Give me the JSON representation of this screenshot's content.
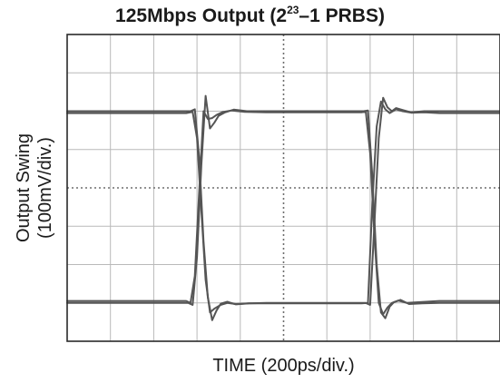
{
  "chart_data": {
    "type": "line",
    "title": {
      "prefix": "125Mbps Output (2",
      "exponent": "23",
      "suffix": "–1 PRBS)"
    },
    "xlabel": "TIME (200ps/div.)",
    "ylabel_lines": [
      "Output Swing",
      "(100mV/div.)"
    ],
    "xlim": [
      0,
      10
    ],
    "ylim": [
      0,
      8
    ],
    "grid": true,
    "x_divisions": 10,
    "y_divisions": 8,
    "series": [
      {
        "x": [
          0,
          2.85,
          2.95,
          3.05,
          3.15,
          3.25,
          3.35,
          3.45,
          3.55,
          3.7,
          3.9,
          4.2,
          4.6,
          5.0,
          6.9,
          7.0,
          7.1,
          7.2,
          7.3,
          7.4,
          7.5,
          7.6,
          7.75,
          7.95,
          8.25,
          8.6,
          10
        ],
        "y": [
          6.0,
          6.0,
          6.05,
          4.8,
          2.6,
          1.15,
          0.55,
          0.8,
          0.98,
          1.03,
          0.96,
          0.99,
          1.0,
          1.0,
          1.0,
          0.95,
          3.1,
          5.3,
          6.35,
          6.1,
          6.0,
          6.08,
          6.03,
          5.97,
          6.0,
          6.0,
          6.0
        ]
      },
      {
        "x": [
          0,
          2.8,
          2.9,
          3.0,
          3.1,
          3.2,
          3.3,
          3.4,
          3.5,
          3.65,
          3.85,
          4.15,
          4.6,
          5.0,
          6.85,
          6.95,
          7.05,
          7.15,
          7.25,
          7.35,
          7.45,
          7.55,
          7.7,
          7.9,
          8.2,
          8.6,
          10
        ],
        "y": [
          1.0,
          1.0,
          0.95,
          2.2,
          4.6,
          6.4,
          5.55,
          5.7,
          5.88,
          5.97,
          6.04,
          6.0,
          6.0,
          6.0,
          6.0,
          6.02,
          4.3,
          2.0,
          0.75,
          0.6,
          0.9,
          1.02,
          1.08,
          0.97,
          0.99,
          1.0,
          1.0
        ]
      },
      {
        "x": [
          0,
          2.75,
          2.9,
          3.0,
          3.1,
          3.2,
          3.3,
          3.4,
          3.55,
          3.7,
          3.9,
          4.2,
          4.6,
          5.0,
          6.8,
          6.95,
          7.05,
          7.15,
          7.25,
          7.35,
          7.45,
          7.6,
          7.75,
          7.95,
          8.25,
          8.6,
          10
        ],
        "y": [
          5.95,
          5.95,
          5.98,
          5.3,
          3.4,
          1.6,
          0.75,
          0.85,
          0.95,
          1.0,
          0.97,
          0.99,
          0.99,
          0.99,
          0.99,
          1.0,
          3.6,
          5.6,
          6.25,
          6.05,
          5.95,
          6.05,
          6.0,
          5.96,
          5.97,
          5.95,
          5.95
        ]
      },
      {
        "x": [
          0,
          2.75,
          2.85,
          2.95,
          3.05,
          3.15,
          3.25,
          3.35,
          3.45,
          3.6,
          3.8,
          4.1,
          4.6,
          5.0,
          6.8,
          6.9,
          7.0,
          7.1,
          7.2,
          7.3,
          7.4,
          7.5,
          7.65,
          7.85,
          8.15,
          8.6,
          10
        ],
        "y": [
          1.05,
          1.05,
          1.0,
          1.7,
          3.9,
          6.0,
          5.8,
          5.82,
          5.9,
          5.98,
          6.02,
          5.98,
          5.97,
          5.97,
          5.97,
          5.99,
          4.9,
          2.7,
          1.0,
          0.7,
          0.88,
          1.0,
          1.06,
          1.0,
          1.02,
          1.05,
          1.05
        ]
      }
    ],
    "colors": {
      "trace": "#555555",
      "grid": "#b9b9b9",
      "frame": "#2a2a2a",
      "center_axis": "#6e6e6e"
    }
  }
}
